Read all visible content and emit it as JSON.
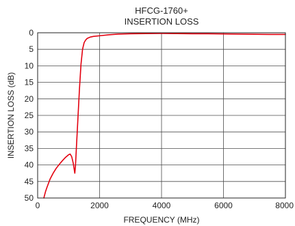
{
  "chart_data": {
    "type": "line",
    "title": "HFCG-1760+",
    "subtitle": "INSERTION LOSS",
    "xlabel": "FREQUENCY (MHz)",
    "ylabel": "INSERTION LOSS (dB)",
    "xlim": [
      0,
      8000
    ],
    "ylim": [
      0,
      50
    ],
    "y_inverted": true,
    "x_ticks": [
      0,
      2000,
      4000,
      6000,
      8000
    ],
    "y_ticks": [
      0,
      5,
      10,
      15,
      20,
      25,
      30,
      35,
      40,
      45,
      50
    ],
    "grid": true,
    "series": [
      {
        "color": "#e3000f",
        "x": [
          200,
          250,
          300,
          400,
          500,
          600,
          700,
          800,
          900,
          1000,
          1050,
          1100,
          1150,
          1200,
          1220,
          1250,
          1300,
          1350,
          1400,
          1450,
          1500,
          1550,
          1600,
          1700,
          1800,
          2000,
          2300,
          2600,
          3000,
          3500,
          4000,
          4500,
          5000,
          5500,
          6000,
          6500,
          7000,
          7500,
          8000
        ],
        "y": [
          50.0,
          48.2,
          46.8,
          44.3,
          42.5,
          41.0,
          39.8,
          38.7,
          37.7,
          36.9,
          36.7,
          37.5,
          39.5,
          42.5,
          40.5,
          35.0,
          26.0,
          17.0,
          9.5,
          5.0,
          3.0,
          2.2,
          1.7,
          1.3,
          1.1,
          0.9,
          0.6,
          0.4,
          0.3,
          0.25,
          0.2,
          0.25,
          0.3,
          0.3,
          0.35,
          0.4,
          0.45,
          0.5,
          0.5
        ]
      }
    ]
  }
}
